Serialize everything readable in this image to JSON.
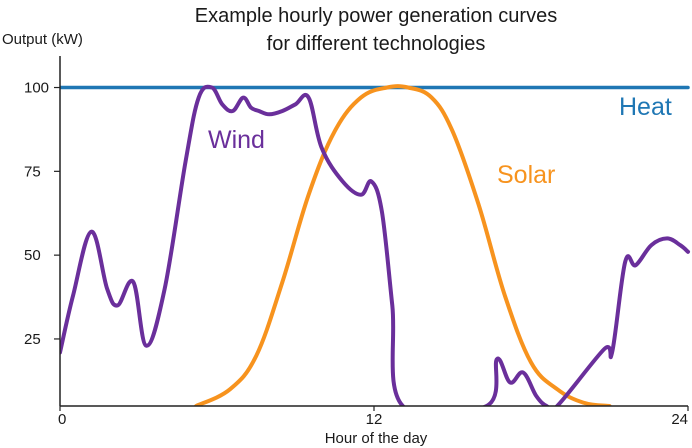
{
  "chart_data": {
    "type": "line",
    "title_lines": [
      "Example hourly power generation curves",
      "for different technologies"
    ],
    "ylabel": "Output (kW)",
    "xlabel": "Hour of the day",
    "xlim": [
      0,
      24
    ],
    "ylim": [
      5,
      110
    ],
    "xticks": [
      0,
      12,
      24
    ],
    "yticks": [
      25,
      50,
      75,
      100
    ],
    "grid": false,
    "series": [
      {
        "name": "Heat",
        "color": "#1f77b4",
        "x": [
          0,
          24
        ],
        "y": [
          100,
          100
        ]
      },
      {
        "name": "Solar",
        "color": "#f7931e",
        "x": [
          5.2,
          6.5,
          7.5,
          8.5,
          9.5,
          10.5,
          11.5,
          12.5,
          13.3,
          14.2,
          15.0,
          16.0,
          17.0,
          18.0,
          19.0,
          20.0,
          21.0
        ],
        "y": [
          5,
          10,
          20,
          42,
          68,
          87,
          97,
          100,
          100,
          97,
          87,
          65,
          38,
          18,
          10,
          6,
          5
        ]
      },
      {
        "name": "Wind",
        "color": "#6a2f9b",
        "x": [
          0,
          0.5,
          1.2,
          1.8,
          2.2,
          2.8,
          3.3,
          4.0,
          4.8,
          5.3,
          5.8,
          6.2,
          6.6,
          7.0,
          7.3,
          7.6,
          8.0,
          8.5,
          9.0,
          9.5,
          10.0,
          10.8,
          11.5,
          11.9,
          12.3,
          12.7,
          13.1,
          16.3,
          16.7,
          17.2,
          17.7,
          18.2,
          18.6,
          19.0,
          20.8,
          21.1,
          21.6,
          22.0,
          22.6,
          23.2,
          23.7,
          24.0
        ],
        "y": [
          21,
          38,
          57,
          40,
          35,
          42,
          23,
          40,
          78,
          97,
          100,
          95,
          93,
          97,
          94,
          93,
          92,
          93,
          95,
          97,
          82,
          72,
          68,
          72,
          63,
          35,
          5,
          5,
          19,
          12,
          15,
          8,
          5,
          5,
          22,
          21,
          48,
          47,
          53,
          55,
          53,
          51
        ]
      }
    ],
    "annotations": [
      {
        "text": "Wind",
        "series": "Wind"
      },
      {
        "text": "Solar",
        "series": "Solar"
      },
      {
        "text": "Heat",
        "series": "Heat"
      }
    ]
  }
}
